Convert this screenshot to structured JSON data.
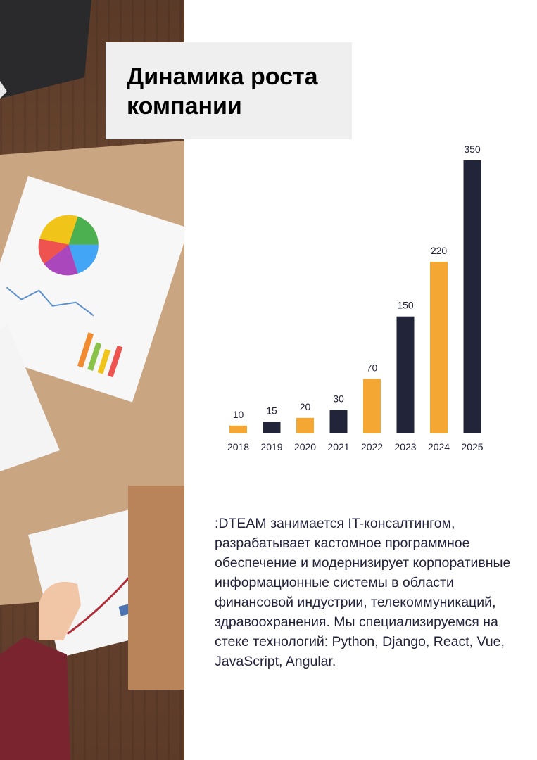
{
  "page": {
    "title": "Динамика роста компании",
    "description": ":DTEAM занимается IT-консалтингом, разрабатывает кастомное программное обеспечение и модернизирует корпоративные информационные системы в области финансовой индустрии, телекоммуникаций, здравоохранения. Мы специализируемся на стеке технологий: Python, Django, React, Vue, JavaScript, Angular."
  },
  "colors": {
    "accent": "#f5a733",
    "dark": "#22243a",
    "title_bg": "#efefef",
    "text": "#22223a"
  },
  "chart_data": {
    "type": "bar",
    "categories": [
      "2018",
      "2019",
      "2020",
      "2021",
      "2022",
      "2023",
      "2024",
      "2025"
    ],
    "values": [
      10,
      15,
      20,
      30,
      70,
      150,
      220,
      350
    ],
    "bar_colors": [
      "#f5a733",
      "#22243a",
      "#f5a733",
      "#22243a",
      "#f5a733",
      "#22243a",
      "#f5a733",
      "#22243a"
    ],
    "title": "",
    "xlabel": "",
    "ylabel": "",
    "data_labels": true,
    "grid": false
  }
}
